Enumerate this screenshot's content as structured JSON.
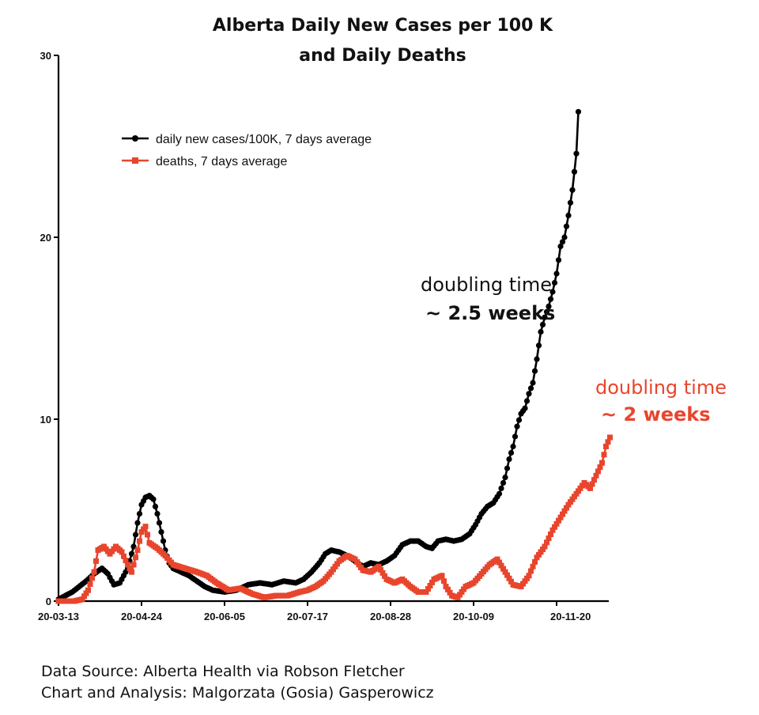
{
  "chart_data": {
    "type": "line",
    "title_line1": "Alberta Daily New Cases per 100 K",
    "title_line2": "and Daily Deaths",
    "xlabel": "",
    "ylabel": "",
    "ylim": [
      0,
      30
    ],
    "y_ticks": [
      "0",
      "10",
      "20",
      "30"
    ],
    "x_ticks": [
      "20-03-13",
      "20-04-24",
      "20-06-05",
      "20-07-17",
      "20-08-28",
      "20-10-09",
      "20-11-20"
    ],
    "x_day_range": [
      0,
      252
    ],
    "legend_position": "top-left",
    "series": [
      {
        "name": "daily new cases/100K, 7 days average",
        "color": "#000000",
        "marker": "circle",
        "points": [
          [
            0,
            0.1
          ],
          [
            7,
            0.5
          ],
          [
            14,
            1.1
          ],
          [
            18,
            1.5
          ],
          [
            22,
            1.8
          ],
          [
            25,
            1.5
          ],
          [
            28,
            0.9
          ],
          [
            31,
            1.0
          ],
          [
            35,
            1.8
          ],
          [
            38,
            3.0
          ],
          [
            40,
            4.3
          ],
          [
            42,
            5.3
          ],
          [
            44,
            5.7
          ],
          [
            46,
            5.8
          ],
          [
            48,
            5.6
          ],
          [
            50,
            4.8
          ],
          [
            52,
            3.8
          ],
          [
            54,
            2.8
          ],
          [
            56,
            2.1
          ],
          [
            58,
            1.8
          ],
          [
            62,
            1.6
          ],
          [
            66,
            1.4
          ],
          [
            70,
            1.1
          ],
          [
            74,
            0.8
          ],
          [
            78,
            0.6
          ],
          [
            84,
            0.5
          ],
          [
            90,
            0.6
          ],
          [
            96,
            0.9
          ],
          [
            102,
            1.0
          ],
          [
            108,
            0.9
          ],
          [
            114,
            1.1
          ],
          [
            120,
            1.0
          ],
          [
            124,
            1.2
          ],
          [
            128,
            1.6
          ],
          [
            132,
            2.1
          ],
          [
            135,
            2.6
          ],
          [
            138,
            2.8
          ],
          [
            142,
            2.7
          ],
          [
            146,
            2.5
          ],
          [
            150,
            2.2
          ],
          [
            154,
            1.9
          ],
          [
            158,
            2.1
          ],
          [
            162,
            2.0
          ],
          [
            166,
            2.2
          ],
          [
            170,
            2.5
          ],
          [
            174,
            3.1
          ],
          [
            178,
            3.3
          ],
          [
            182,
            3.3
          ],
          [
            186,
            3.0
          ],
          [
            189,
            2.9
          ],
          [
            192,
            3.3
          ],
          [
            196,
            3.4
          ],
          [
            200,
            3.3
          ],
          [
            204,
            3.4
          ],
          [
            208,
            3.7
          ],
          [
            211,
            4.2
          ],
          [
            214,
            4.8
          ],
          [
            217,
            5.2
          ],
          [
            220,
            5.4
          ],
          [
            223,
            5.9
          ],
          [
            226,
            6.8
          ],
          [
            228,
            7.8
          ],
          [
            230,
            8.5
          ],
          [
            232,
            9.6
          ],
          [
            234,
            10.3
          ],
          [
            236,
            10.6
          ],
          [
            238,
            11.4
          ],
          [
            240,
            12.0
          ],
          [
            242,
            13.3
          ],
          [
            244,
            14.8
          ],
          [
            246,
            15.6
          ],
          [
            248,
            16.2
          ],
          [
            250,
            17.0
          ],
          [
            252,
            18.0
          ],
          [
            254,
            19.5
          ],
          [
            256,
            20.0
          ],
          [
            258,
            21.2
          ],
          [
            260,
            22.6
          ],
          [
            262,
            24.6
          ],
          [
            263,
            26.9
          ]
        ]
      },
      {
        "name": "deaths, 7 days average",
        "color": "#e8452d",
        "marker": "square",
        "points": [
          [
            0,
            0.0
          ],
          [
            8,
            0.0
          ],
          [
            12,
            0.1
          ],
          [
            15,
            0.6
          ],
          [
            18,
            1.6
          ],
          [
            20,
            2.8
          ],
          [
            23,
            3.0
          ],
          [
            26,
            2.6
          ],
          [
            29,
            3.0
          ],
          [
            32,
            2.7
          ],
          [
            35,
            2.0
          ],
          [
            37,
            1.6
          ],
          [
            40,
            2.8
          ],
          [
            42,
            3.8
          ],
          [
            44,
            4.1
          ],
          [
            46,
            3.2
          ],
          [
            50,
            2.9
          ],
          [
            54,
            2.5
          ],
          [
            58,
            2.0
          ],
          [
            64,
            1.8
          ],
          [
            70,
            1.6
          ],
          [
            75,
            1.4
          ],
          [
            80,
            1.0
          ],
          [
            86,
            0.6
          ],
          [
            92,
            0.7
          ],
          [
            98,
            0.4
          ],
          [
            104,
            0.2
          ],
          [
            110,
            0.3
          ],
          [
            116,
            0.3
          ],
          [
            122,
            0.5
          ],
          [
            126,
            0.6
          ],
          [
            130,
            0.8
          ],
          [
            134,
            1.1
          ],
          [
            138,
            1.6
          ],
          [
            142,
            2.2
          ],
          [
            146,
            2.5
          ],
          [
            150,
            2.3
          ],
          [
            154,
            1.7
          ],
          [
            158,
            1.6
          ],
          [
            162,
            1.9
          ],
          [
            166,
            1.2
          ],
          [
            170,
            1.0
          ],
          [
            174,
            1.2
          ],
          [
            178,
            0.8
          ],
          [
            182,
            0.5
          ],
          [
            186,
            0.5
          ],
          [
            190,
            1.2
          ],
          [
            194,
            1.4
          ],
          [
            196,
            0.8
          ],
          [
            199,
            0.3
          ],
          [
            202,
            0.2
          ],
          [
            206,
            0.8
          ],
          [
            210,
            1.0
          ],
          [
            214,
            1.5
          ],
          [
            218,
            2.0
          ],
          [
            222,
            2.3
          ],
          [
            226,
            1.6
          ],
          [
            230,
            0.9
          ],
          [
            234,
            0.8
          ],
          [
            238,
            1.4
          ],
          [
            242,
            2.4
          ],
          [
            246,
            3.0
          ],
          [
            250,
            3.9
          ],
          [
            254,
            4.6
          ],
          [
            258,
            5.3
          ],
          [
            262,
            5.9
          ],
          [
            266,
            6.5
          ],
          [
            269,
            6.2
          ],
          [
            272,
            6.9
          ],
          [
            275,
            7.6
          ],
          [
            277,
            8.5
          ],
          [
            279,
            9.0
          ]
        ]
      }
    ],
    "annotations": [
      {
        "line1": "doubling time",
        "line2": "~ 2.5 weeks",
        "color": "#111111"
      },
      {
        "line1": "doubling time",
        "line2": "~ 2 weeks",
        "color": "#e8452d"
      }
    ]
  },
  "credits": {
    "source": "Data Source: Alberta Health via Robson Fletcher",
    "analysis": "Chart and Analysis: Malgorzata (Gosia) Gasperowicz"
  }
}
